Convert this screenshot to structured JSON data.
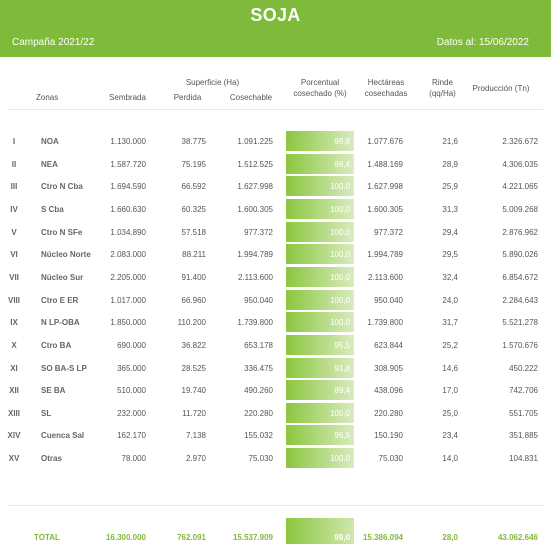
{
  "header": {
    "title": "SOJA",
    "campaign": "Campaña 2021/22",
    "date": "Datos al: 15/06/2022"
  },
  "columns": {
    "zonas": "Zonas",
    "superficie": "Superficie (Ha)",
    "sembrada": "Sembrada",
    "perdida": "Perdida",
    "cosechable": "Cosechable",
    "porcentual_1": "Porcentual",
    "porcentual_2": "cosechado (%)",
    "hectareas_1": "Hectáreas",
    "hectareas_2": "cosechadas",
    "rinde_1": "Rinde",
    "rinde_2": "(qq/Ha)",
    "produccion": "Producción (Tn)"
  },
  "rows": [
    {
      "num": "I",
      "zona": "NOA",
      "sembrada": "1.130.000",
      "perdida": "38.775",
      "cosechable": "1.091.225",
      "porcentual": "98,8",
      "pct": 98.8,
      "cosechadas": "1.077.676",
      "rinde": "21,6",
      "produccion": "2.326.672"
    },
    {
      "num": "II",
      "zona": "NEA",
      "sembrada": "1.587.720",
      "perdida": "75.195",
      "cosechable": "1.512.525",
      "porcentual": "98,4",
      "pct": 98.4,
      "cosechadas": "1.488.169",
      "rinde": "28,9",
      "produccion": "4.306.035"
    },
    {
      "num": "III",
      "zona": "Ctro N Cba",
      "sembrada": "1.694.590",
      "perdida": "66.592",
      "cosechable": "1.627.998",
      "porcentual": "100,0",
      "pct": 100,
      "cosechadas": "1.627.998",
      "rinde": "25,9",
      "produccion": "4.221.065"
    },
    {
      "num": "IV",
      "zona": "S Cba",
      "sembrada": "1.660.630",
      "perdida": "60.325",
      "cosechable": "1.600.305",
      "porcentual": "100,0",
      "pct": 100,
      "cosechadas": "1.600.305",
      "rinde": "31,3",
      "produccion": "5.009.268"
    },
    {
      "num": "V",
      "zona": "Ctro N SFe",
      "sembrada": "1.034.890",
      "perdida": "57.518",
      "cosechable": "977.372",
      "porcentual": "100,0",
      "pct": 100,
      "cosechadas": "977.372",
      "rinde": "29,4",
      "produccion": "2.876.962"
    },
    {
      "num": "VI",
      "zona": "Núcleo Norte",
      "sembrada": "2.083.000",
      "perdida": "88.211",
      "cosechable": "1.994.789",
      "porcentual": "100,0",
      "pct": 100,
      "cosechadas": "1.994.789",
      "rinde": "29,5",
      "produccion": "5.890.026"
    },
    {
      "num": "VII",
      "zona": "Núcleo Sur",
      "sembrada": "2.205.000",
      "perdida": "91.400",
      "cosechable": "2.113.600",
      "porcentual": "100,0",
      "pct": 100,
      "cosechadas": "2.113.600",
      "rinde": "32,4",
      "produccion": "6.854.672"
    },
    {
      "num": "VIII",
      "zona": "Ctro E ER",
      "sembrada": "1.017.000",
      "perdida": "66.960",
      "cosechable": "950.040",
      "porcentual": "100,0",
      "pct": 100,
      "cosechadas": "950.040",
      "rinde": "24,0",
      "produccion": "2.284.643"
    },
    {
      "num": "IX",
      "zona": "N LP-OBA",
      "sembrada": "1.850.000",
      "perdida": "110.200",
      "cosechable": "1.739.800",
      "porcentual": "100,0",
      "pct": 100,
      "cosechadas": "1.739.800",
      "rinde": "31,7",
      "produccion": "5.521.278"
    },
    {
      "num": "X",
      "zona": "Ctro BA",
      "sembrada": "690.000",
      "perdida": "36.822",
      "cosechable": "653.178",
      "porcentual": "95,5",
      "pct": 95.5,
      "cosechadas": "623.844",
      "rinde": "25,2",
      "produccion": "1.570.676"
    },
    {
      "num": "XI",
      "zona": "SO BA-S LP",
      "sembrada": "365.000",
      "perdida": "28.525",
      "cosechable": "336.475",
      "porcentual": "91,8",
      "pct": 91.8,
      "cosechadas": "308.905",
      "rinde": "14,6",
      "produccion": "450.222"
    },
    {
      "num": "XII",
      "zona": "SE BA",
      "sembrada": "510.000",
      "perdida": "19.740",
      "cosechable": "490.260",
      "porcentual": "89,4",
      "pct": 89.4,
      "cosechadas": "438.096",
      "rinde": "17,0",
      "produccion": "742.706"
    },
    {
      "num": "XIII",
      "zona": "SL",
      "sembrada": "232.000",
      "perdida": "11.720",
      "cosechable": "220.280",
      "porcentual": "100,0",
      "pct": 100,
      "cosechadas": "220.280",
      "rinde": "25,0",
      "produccion": "551.705"
    },
    {
      "num": "XIV",
      "zona": "Cuenca Sal",
      "sembrada": "162.170",
      "perdida": "7.138",
      "cosechable": "155.032",
      "porcentual": "96,9",
      "pct": 96.9,
      "cosechadas": "150.190",
      "rinde": "23,4",
      "produccion": "351.885"
    },
    {
      "num": "XV",
      "zona": "Otras",
      "sembrada": "78.000",
      "perdida": "2.970",
      "cosechable": "75.030",
      "porcentual": "100,0",
      "pct": 100,
      "cosechadas": "75.030",
      "rinde": "14,0",
      "produccion": "104.831"
    }
  ],
  "total": {
    "label": "TOTAL",
    "sembrada": "16.300.000",
    "perdida": "762.091",
    "cosechable": "15.537.909",
    "porcentual": "99,0",
    "pct": 99.0,
    "cosechadas": "15.386.094",
    "rinde": "28,0",
    "produccion": "43.062.646"
  },
  "colors": {
    "header_bg": "#7fba3a",
    "bar_green": "#8cc63f",
    "total_text": "#7fba3a"
  }
}
